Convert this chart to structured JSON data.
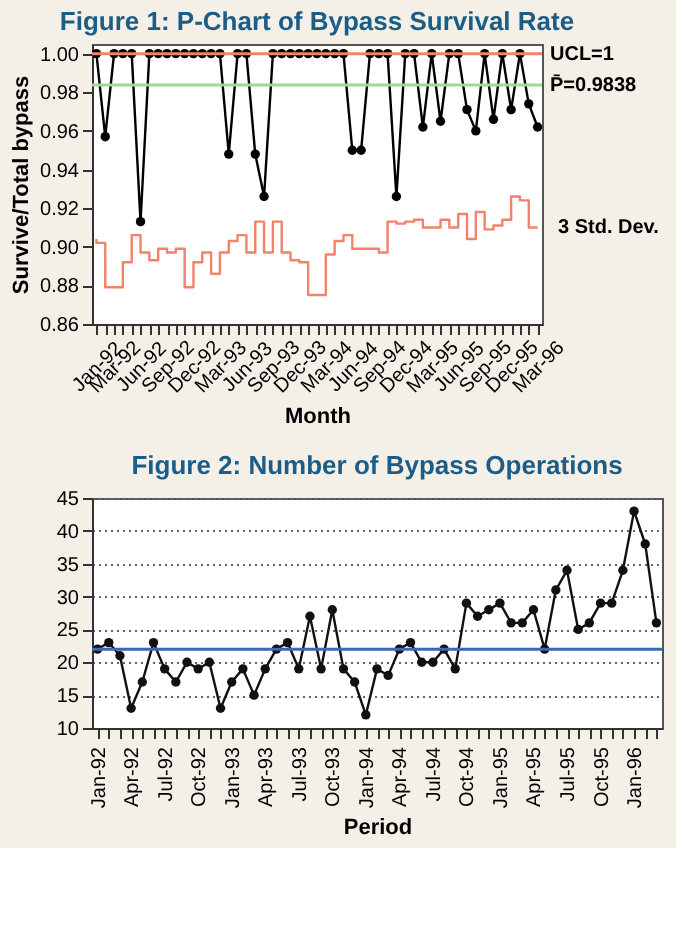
{
  "chart_data": [
    {
      "type": "line",
      "title": "Figure 1: P-Chart of Bypass Survival Rate",
      "xlabel": "Month",
      "ylabel": "Survive/Total bypass",
      "categories": [
        "Jan-92",
        null,
        "Mar-92",
        null,
        null,
        "Jun-92",
        null,
        null,
        "Sep-92",
        null,
        null,
        "Dec-92",
        null,
        null,
        "Mar-93",
        null,
        null,
        "Jun-93",
        null,
        null,
        "Sep-93",
        null,
        null,
        "Dec-93",
        null,
        null,
        "Mar-94",
        null,
        null,
        "Jun-94",
        null,
        null,
        "Sep-94",
        null,
        null,
        "Dec-94",
        null,
        null,
        "Mar-95",
        null,
        null,
        "Jun-95",
        null,
        null,
        "Sep-95",
        null,
        null,
        "Dec-95",
        null,
        null,
        "Mar-96"
      ],
      "series": [
        {
          "color": "#000000",
          "marker": "circle",
          "values": [
            1.0,
            0.957,
            1.0,
            1.0,
            1.0,
            0.913,
            1.0,
            1.0,
            1.0,
            1.0,
            1.0,
            1.0,
            1.0,
            1.0,
            1.0,
            0.948,
            1.0,
            1.0,
            0.948,
            0.926,
            1.0,
            1.0,
            1.0,
            1.0,
            1.0,
            1.0,
            1.0,
            1.0,
            1.0,
            0.95,
            0.95,
            1.0,
            1.0,
            1.0,
            0.926,
            1.0,
            1.0,
            0.962,
            1.0,
            0.965,
            1.0,
            1.0,
            0.971,
            0.96,
            1.0,
            0.966,
            1.0,
            0.971,
            1.0,
            0.974,
            0.962
          ]
        },
        {
          "name": "3 Std. Dev.",
          "type": "step",
          "color": "#f4826a",
          "marker": "none",
          "values": [
            0.904,
            0.902,
            0.879,
            0.879,
            0.892,
            0.906,
            0.897,
            0.893,
            0.899,
            0.897,
            0.899,
            0.879,
            0.892,
            0.897,
            0.886,
            0.897,
            0.903,
            0.906,
            0.897,
            0.913,
            0.897,
            0.913,
            0.897,
            0.893,
            0.892,
            0.875,
            0.875,
            0.896,
            0.903,
            0.906,
            0.899,
            0.899,
            0.899,
            0.897,
            0.913,
            0.912,
            0.913,
            0.914,
            0.91,
            0.91,
            0.914,
            0.91,
            0.917,
            0.904,
            0.918,
            0.909,
            0.911,
            0.914,
            0.926,
            0.924,
            0.91
          ]
        }
      ],
      "ylim": [
        0.86,
        1.005
      ],
      "yticks": [
        0.86,
        0.88,
        {
          "value": 0.9,
          "label": "0.90"
        },
        0.92,
        0.94,
        0.96,
        0.98,
        {
          "value": 1,
          "label": "1.00"
        }
      ],
      "ref_lines": [
        {
          "axis": "y",
          "value": 1,
          "label": "UCL=1",
          "color": "#f4826a"
        },
        {
          "axis": "y",
          "value": 0.9838,
          "label": "P̄=0.9838",
          "color": "#9fd89a"
        }
      ],
      "grid": false,
      "legend": false
    },
    {
      "type": "line",
      "title": "Figure 2: Number of Bypass Operations",
      "xlabel": "Period",
      "categories": [
        "Jan-92",
        null,
        null,
        "Apr-92",
        null,
        null,
        "Jul-92",
        null,
        null,
        "Oct-92",
        null,
        null,
        "Jan-93",
        null,
        null,
        "Apr-93",
        null,
        null,
        "Jul-93",
        null,
        null,
        "Oct-93",
        null,
        null,
        "Jan-94",
        null,
        null,
        "Apr-94",
        null,
        null,
        "Jul-94",
        null,
        null,
        "Oct-94",
        null,
        null,
        "Jan-95",
        null,
        null,
        "Apr-95",
        null,
        null,
        "Jul-95",
        null,
        null,
        "Oct-95",
        null,
        null,
        "Jan-96",
        null,
        null
      ],
      "series": [
        {
          "color": "#111111",
          "marker": "circle",
          "values": [
            22,
            23,
            21,
            13,
            17,
            23,
            19,
            17,
            20,
            19,
            20,
            13,
            17,
            19,
            15,
            19,
            22,
            23,
            19,
            27,
            19,
            28,
            19,
            17,
            12,
            19,
            18,
            22,
            23,
            20,
            20,
            22,
            19,
            29,
            27,
            28,
            29,
            26,
            26,
            28,
            22,
            31,
            34,
            25,
            26,
            29,
            29,
            34,
            43,
            38,
            26
          ]
        }
      ],
      "ylim": [
        10,
        45
      ],
      "yticks": [
        10,
        15,
        20,
        25,
        30,
        35,
        40,
        45
      ],
      "ref_lines": [
        {
          "axis": "y",
          "value": 22,
          "color": "#3a6ab0"
        }
      ],
      "grid": "y",
      "legend": false
    }
  ]
}
